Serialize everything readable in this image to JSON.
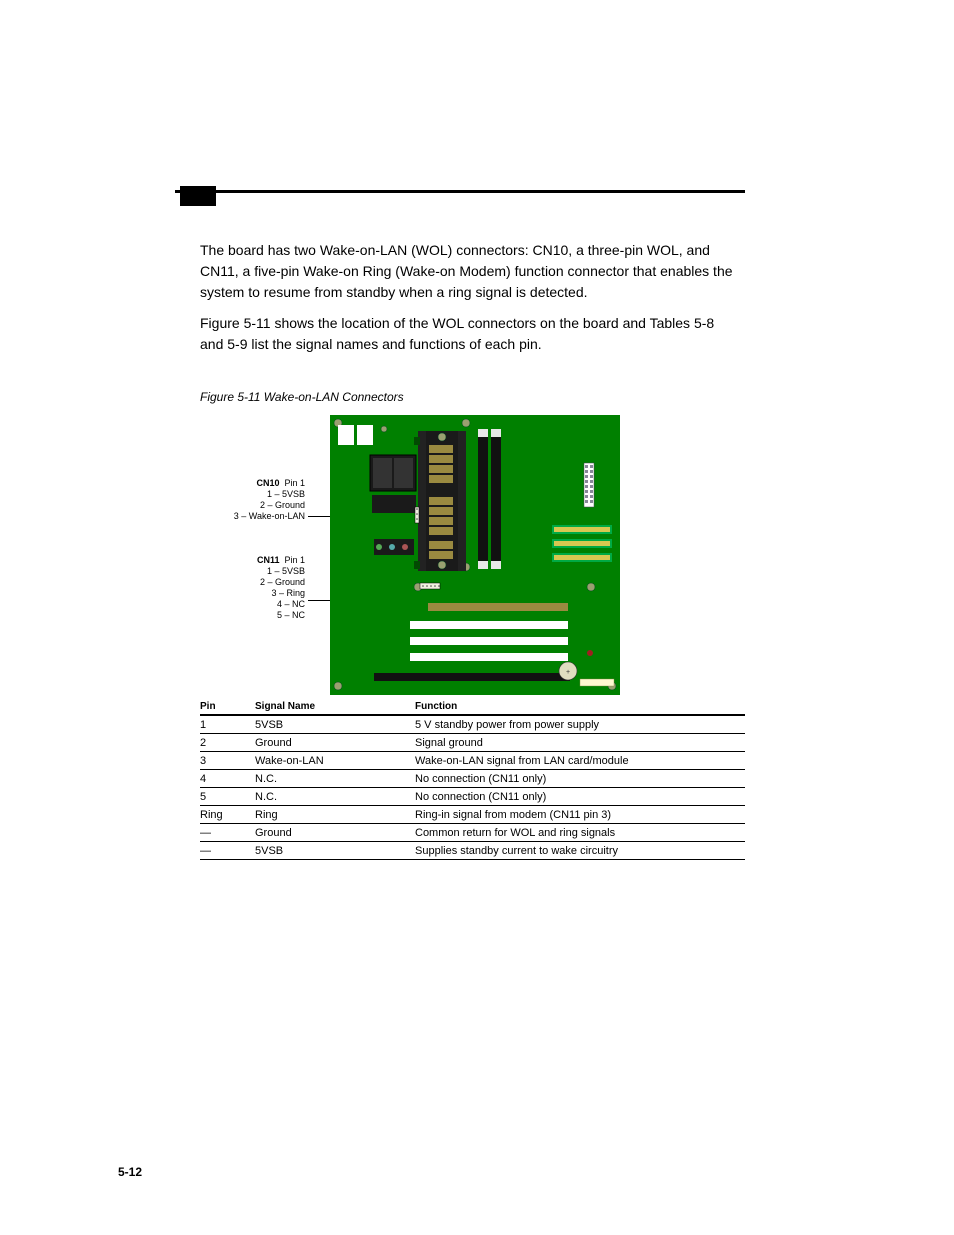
{
  "page_number": "5-12",
  "intro": {
    "p1": "The board has two Wake-on-LAN (WOL) connectors: CN10, a three-pin WOL, and CN11, a five-pin Wake-on Ring (Wake-on Modem) function connector that enables the system to resume from standby when a ring signal is detected.",
    "p2a": "Figure 5-11 shows the location of the WOL connectors on the board and Tables ",
    "p2_link_a": "5-8",
    "p2_mid": " and ",
    "p2_link_b": "5-9",
    "p2b": " list the signal names and functions of each pin."
  },
  "figure_caption": "Figure 5-11  Wake-on-LAN Connectors",
  "callouts": {
    "cn10": {
      "label": "CN10",
      "p1": "Pin 1",
      "lines": [
        "1 – 5VSB",
        "2 – Ground",
        "3 – Wake-on-LAN"
      ]
    },
    "cn11": {
      "label": "CN11",
      "p1": "Pin 1",
      "lines": [
        "1 – 5VSB",
        "2 – Ground",
        "3 – Ring",
        "4 – NC",
        "5 – NC"
      ]
    }
  },
  "board": {
    "pcb_color": "#008000",
    "silk": "#e8e8e8",
    "dark": "#203020",
    "black": "#1a1a1a",
    "white": "#ffffff",
    "gold": "#9a8a40",
    "yellow": "#d8c850",
    "red": "#a02020",
    "screw": "#9aa070"
  },
  "table": {
    "headers": {
      "pin": "Pin",
      "signal": "Signal Name",
      "fn": "Function"
    },
    "rows": [
      {
        "pin": "1",
        "signal": "5VSB",
        "fn": "5 V standby power from power supply"
      },
      {
        "pin": "2",
        "signal": "Ground",
        "fn": "Signal ground"
      },
      {
        "pin": "3",
        "signal": "Wake-on-LAN",
        "fn": "Wake-on-LAN signal from LAN card/module"
      },
      {
        "pin": "4",
        "signal": "N.C.",
        "fn": "No connection (CN11 only)"
      },
      {
        "pin": "5",
        "signal": "N.C.",
        "fn": "No connection (CN11 only)"
      },
      {
        "pin": "Ring",
        "signal": "Ring",
        "fn": "Ring-in signal from modem (CN11 pin 3)"
      },
      {
        "pin": "—",
        "signal": "Ground",
        "fn": "Common return for WOL and ring signals"
      },
      {
        "pin": "—",
        "signal": "5VSB",
        "fn": "Supplies standby current to wake circuitry"
      }
    ]
  }
}
